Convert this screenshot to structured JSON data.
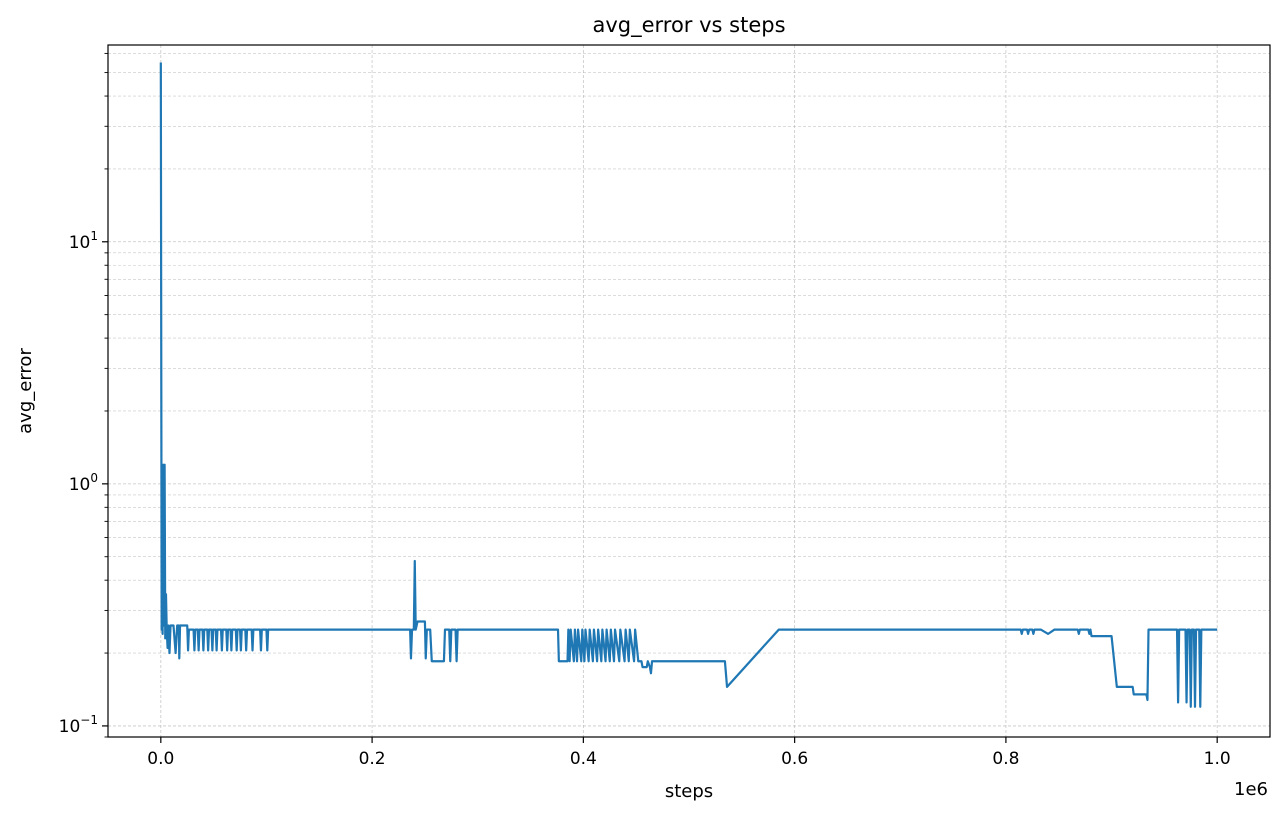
{
  "chart_data": {
    "type": "line",
    "title": "avg_error vs steps",
    "xlabel": "steps",
    "ylabel": "avg_error",
    "x_offset_text": "1e6",
    "xlim": [
      -50000,
      1050000
    ],
    "ylim": [
      0.09,
      65
    ],
    "y_scale": "log",
    "grid": true,
    "grid_style": "dashed",
    "x_ticks": [
      0,
      200000,
      400000,
      600000,
      800000,
      1000000
    ],
    "x_tick_labels": [
      "0.0",
      "0.2",
      "0.4",
      "0.6",
      "0.8",
      "1.0"
    ],
    "y_ticks": [
      0.1,
      1,
      10
    ],
    "y_tick_labels": [
      {
        "base": "10",
        "exp": "−1"
      },
      {
        "base": "10",
        "exp": "0"
      },
      {
        "base": "10",
        "exp": "1"
      }
    ],
    "series": [
      {
        "color": "#1f77b4",
        "points": [
          [
            0,
            55
          ],
          [
            800,
            0.25
          ],
          [
            1200,
            1.2
          ],
          [
            1700,
            0.24
          ],
          [
            2300,
            1.2
          ],
          [
            2900,
            0.26
          ],
          [
            3600,
            1.2
          ],
          [
            4200,
            0.23
          ],
          [
            4900,
            0.35
          ],
          [
            5600,
            0.25
          ],
          [
            6400,
            0.21
          ],
          [
            7200,
            0.26
          ],
          [
            8200,
            0.2
          ],
          [
            9200,
            0.26
          ],
          [
            12000,
            0.26
          ],
          [
            14000,
            0.2
          ],
          [
            15500,
            0.26
          ],
          [
            17000,
            0.26
          ],
          [
            17500,
            0.19
          ],
          [
            18200,
            0.26
          ],
          [
            25000,
            0.26
          ],
          [
            25800,
            0.205
          ],
          [
            26600,
            0.25
          ],
          [
            31000,
            0.25
          ],
          [
            31800,
            0.205
          ],
          [
            32600,
            0.25
          ],
          [
            35000,
            0.25
          ],
          [
            35800,
            0.205
          ],
          [
            36600,
            0.25
          ],
          [
            39500,
            0.25
          ],
          [
            40300,
            0.205
          ],
          [
            41100,
            0.25
          ],
          [
            44000,
            0.25
          ],
          [
            44800,
            0.205
          ],
          [
            45600,
            0.25
          ],
          [
            48000,
            0.25
          ],
          [
            48800,
            0.205
          ],
          [
            49600,
            0.25
          ],
          [
            52000,
            0.25
          ],
          [
            52800,
            0.205
          ],
          [
            53600,
            0.25
          ],
          [
            57000,
            0.25
          ],
          [
            57800,
            0.205
          ],
          [
            58600,
            0.25
          ],
          [
            62000,
            0.25
          ],
          [
            62800,
            0.205
          ],
          [
            63600,
            0.25
          ],
          [
            66000,
            0.25
          ],
          [
            66800,
            0.205
          ],
          [
            67600,
            0.25
          ],
          [
            71000,
            0.25
          ],
          [
            71800,
            0.205
          ],
          [
            72600,
            0.25
          ],
          [
            75000,
            0.25
          ],
          [
            75800,
            0.205
          ],
          [
            76600,
            0.25
          ],
          [
            80000,
            0.25
          ],
          [
            80800,
            0.205
          ],
          [
            81600,
            0.25
          ],
          [
            86000,
            0.25
          ],
          [
            86800,
            0.205
          ],
          [
            87600,
            0.25
          ],
          [
            94000,
            0.25
          ],
          [
            94800,
            0.205
          ],
          [
            95600,
            0.25
          ],
          [
            100000,
            0.25
          ],
          [
            100800,
            0.205
          ],
          [
            101600,
            0.25
          ],
          [
            236000,
            0.25
          ],
          [
            236800,
            0.19
          ],
          [
            237800,
            0.25
          ],
          [
            239500,
            0.25
          ],
          [
            240400,
            0.48
          ],
          [
            241300,
            0.25
          ],
          [
            243000,
            0.27
          ],
          [
            250000,
            0.27
          ],
          [
            250800,
            0.19
          ],
          [
            251800,
            0.25
          ],
          [
            255000,
            0.25
          ],
          [
            256500,
            0.185
          ],
          [
            268000,
            0.185
          ],
          [
            269000,
            0.25
          ],
          [
            273000,
            0.25
          ],
          [
            274000,
            0.185
          ],
          [
            275000,
            0.25
          ],
          [
            279000,
            0.25
          ],
          [
            280000,
            0.185
          ],
          [
            281000,
            0.25
          ],
          [
            376000,
            0.25
          ],
          [
            376800,
            0.185
          ],
          [
            385000,
            0.185
          ],
          [
            385800,
            0.25
          ],
          [
            387000,
            0.185
          ],
          [
            388000,
            0.25
          ],
          [
            391000,
            0.185
          ],
          [
            392000,
            0.25
          ],
          [
            394000,
            0.185
          ],
          [
            395000,
            0.25
          ],
          [
            398000,
            0.185
          ],
          [
            399000,
            0.25
          ],
          [
            401000,
            0.185
          ],
          [
            402000,
            0.25
          ],
          [
            405000,
            0.185
          ],
          [
            406000,
            0.25
          ],
          [
            409000,
            0.185
          ],
          [
            410000,
            0.25
          ],
          [
            413000,
            0.185
          ],
          [
            414000,
            0.25
          ],
          [
            417000,
            0.185
          ],
          [
            418000,
            0.25
          ],
          [
            421000,
            0.185
          ],
          [
            422000,
            0.25
          ],
          [
            425000,
            0.185
          ],
          [
            426000,
            0.25
          ],
          [
            429000,
            0.185
          ],
          [
            430000,
            0.25
          ],
          [
            434000,
            0.185
          ],
          [
            435000,
            0.25
          ],
          [
            439000,
            0.185
          ],
          [
            440000,
            0.25
          ],
          [
            443000,
            0.185
          ],
          [
            444000,
            0.25
          ],
          [
            448000,
            0.185
          ],
          [
            449000,
            0.25
          ],
          [
            452000,
            0.185
          ],
          [
            455000,
            0.185
          ],
          [
            456000,
            0.175
          ],
          [
            460000,
            0.175
          ],
          [
            461000,
            0.185
          ],
          [
            463000,
            0.175
          ],
          [
            464000,
            0.165
          ],
          [
            465000,
            0.185
          ],
          [
            534000,
            0.185
          ],
          [
            536000,
            0.145
          ],
          [
            585000,
            0.25
          ],
          [
            814000,
            0.25
          ],
          [
            815000,
            0.24
          ],
          [
            816000,
            0.25
          ],
          [
            820000,
            0.25
          ],
          [
            821000,
            0.24
          ],
          [
            822000,
            0.25
          ],
          [
            825000,
            0.25
          ],
          [
            826000,
            0.24
          ],
          [
            827000,
            0.25
          ],
          [
            833000,
            0.25
          ],
          [
            840000,
            0.24
          ],
          [
            846000,
            0.25
          ],
          [
            868000,
            0.25
          ],
          [
            869000,
            0.24
          ],
          [
            870000,
            0.25
          ],
          [
            878000,
            0.25
          ],
          [
            879000,
            0.24
          ],
          [
            880000,
            0.25
          ],
          [
            881000,
            0.235
          ],
          [
            900000,
            0.235
          ],
          [
            905000,
            0.145
          ],
          [
            920000,
            0.145
          ],
          [
            921000,
            0.135
          ],
          [
            933000,
            0.135
          ],
          [
            934000,
            0.128
          ],
          [
            935000,
            0.25
          ],
          [
            962000,
            0.25
          ],
          [
            963000,
            0.125
          ],
          [
            964000,
            0.25
          ],
          [
            970000,
            0.25
          ],
          [
            971000,
            0.125
          ],
          [
            972000,
            0.25
          ],
          [
            974000,
            0.25
          ],
          [
            975000,
            0.12
          ],
          [
            976000,
            0.25
          ],
          [
            978000,
            0.25
          ],
          [
            979000,
            0.12
          ],
          [
            980000,
            0.25
          ],
          [
            983000,
            0.25
          ],
          [
            984000,
            0.12
          ],
          [
            985000,
            0.25
          ],
          [
            1000000,
            0.25
          ]
        ]
      }
    ]
  }
}
